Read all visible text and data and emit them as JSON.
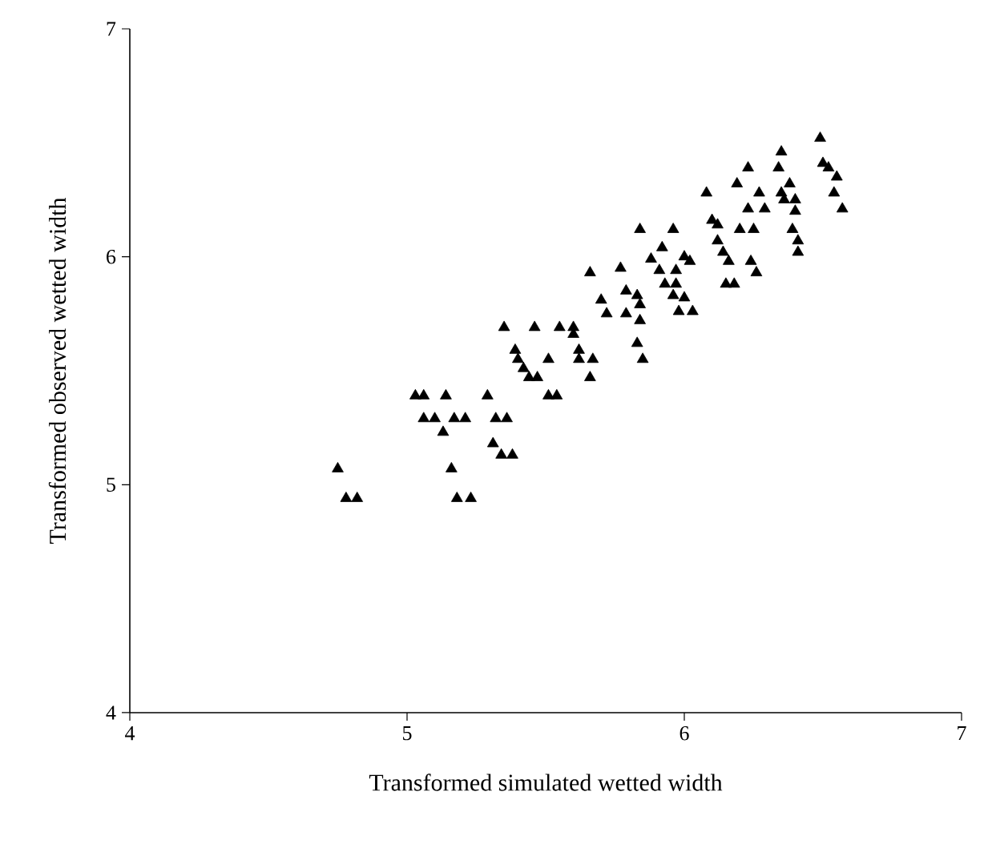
{
  "chart_data": {
    "type": "scatter",
    "xlabel": "Transformed simulated wetted width",
    "ylabel": "Transformed observed wetted width",
    "xlim": [
      4,
      7
    ],
    "ylim": [
      4,
      7
    ],
    "xticks": [
      4,
      5,
      6,
      7
    ],
    "yticks": [
      4,
      5,
      6,
      7
    ],
    "marker": "triangle",
    "color": "#000000",
    "x": [
      4.75,
      4.78,
      4.82,
      5.03,
      5.06,
      5.14,
      5.06,
      5.1,
      5.17,
      5.21,
      5.13,
      5.16,
      5.18,
      5.23,
      5.32,
      5.36,
      5.31,
      5.34,
      5.38,
      5.29,
      5.51,
      5.54,
      5.35,
      5.46,
      5.55,
      5.6,
      5.6,
      5.39,
      5.62,
      5.4,
      5.51,
      5.62,
      5.67,
      5.42,
      5.44,
      5.47,
      5.66,
      5.83,
      5.85,
      5.66,
      5.77,
      5.79,
      5.83,
      5.7,
      5.72,
      5.79,
      5.84,
      5.84,
      5.92,
      6.0,
      5.88,
      6.02,
      5.91,
      5.97,
      5.93,
      5.97,
      5.96,
      6.0,
      5.98,
      6.03,
      6.49,
      6.35,
      6.23,
      6.34,
      6.5,
      6.52,
      6.55,
      6.19,
      6.38,
      6.08,
      6.27,
      6.35,
      6.54,
      6.36,
      6.4,
      6.23,
      6.29,
      6.4,
      6.57,
      6.1,
      6.12,
      6.2,
      6.25,
      6.39,
      5.96,
      5.84,
      6.12,
      6.41,
      6.14,
      6.41,
      6.24,
      6.16,
      6.26,
      6.15,
      6.18
    ],
    "values": [
      5.07,
      4.94,
      4.94,
      5.39,
      5.39,
      5.39,
      5.29,
      5.29,
      5.29,
      5.29,
      5.23,
      5.07,
      4.94,
      4.94,
      5.29,
      5.29,
      5.18,
      5.13,
      5.13,
      5.39,
      5.39,
      5.39,
      5.69,
      5.69,
      5.69,
      5.69,
      5.66,
      5.59,
      5.59,
      5.55,
      5.55,
      5.55,
      5.55,
      5.51,
      5.47,
      5.47,
      5.47,
      5.62,
      5.55,
      5.93,
      5.95,
      5.85,
      5.83,
      5.81,
      5.75,
      5.75,
      5.79,
      5.72,
      6.04,
      6.0,
      5.99,
      5.98,
      5.94,
      5.94,
      5.88,
      5.88,
      5.83,
      5.82,
      5.76,
      5.76,
      6.52,
      6.46,
      6.39,
      6.39,
      6.41,
      6.39,
      6.35,
      6.32,
      6.32,
      6.28,
      6.28,
      6.28,
      6.28,
      6.25,
      6.25,
      6.21,
      6.21,
      6.2,
      6.21,
      6.16,
      6.14,
      6.12,
      6.12,
      6.12,
      6.12,
      6.12,
      6.07,
      6.07,
      6.02,
      6.02,
      5.98,
      5.98,
      5.93,
      5.88,
      5.88
    ]
  }
}
